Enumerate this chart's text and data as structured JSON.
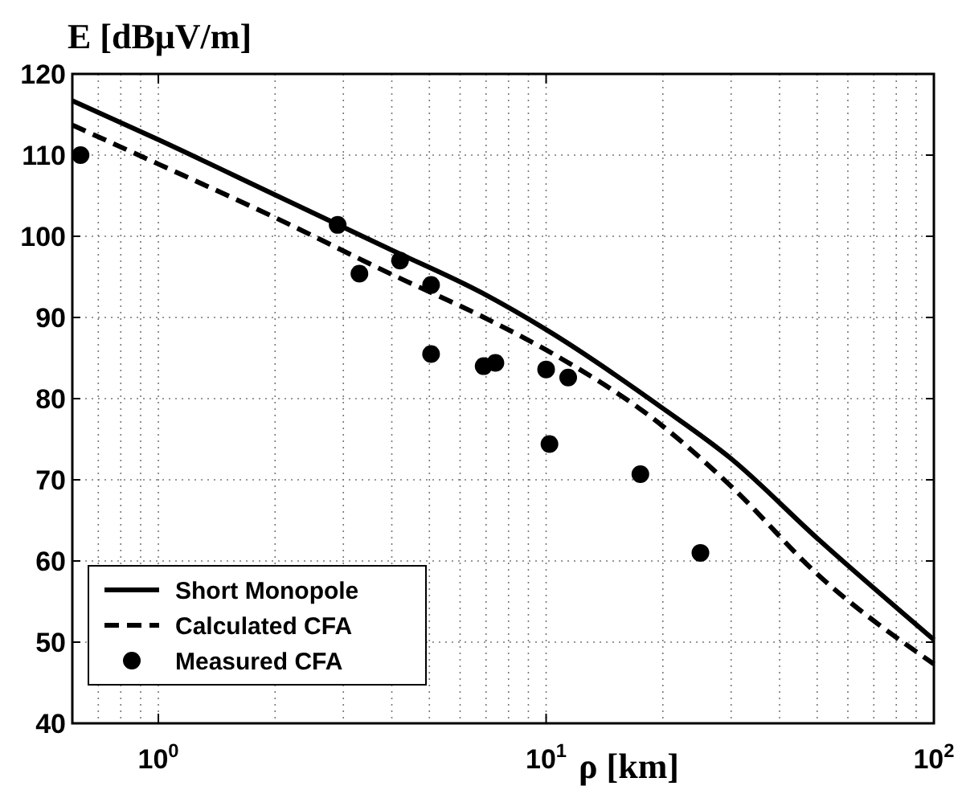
{
  "chart_data": {
    "type": "line",
    "xlabel": "ρ [km]",
    "ylabel": "E [dBμV/m]",
    "log": "x",
    "grid": true,
    "legend": "bottom left",
    "xlim": [
      0.6,
      100
    ],
    "xticks": [
      {
        "value": 1,
        "label": "10$^{0}$"
      },
      {
        "value": 10,
        "label": "10$^{1}$"
      },
      {
        "value": 100,
        "label": "10$^{2}$"
      }
    ],
    "ylim": [
      40,
      120
    ],
    "yticks": [
      40,
      50,
      60,
      70,
      80,
      90,
      100,
      110,
      120
    ],
    "series": [
      {
        "name": "Short Monopole",
        "color": "#000000",
        "line_style": "solid",
        "x": [
          0.6,
          1,
          2,
          4,
          6.85,
          10,
          20,
          30,
          50,
          100
        ],
        "values": [
          116.7,
          111.9,
          105.1,
          98.3,
          93,
          88.5,
          78.8,
          72.6,
          62.8,
          50.3
        ]
      },
      {
        "name": "Calculated CFA",
        "color": "#000000",
        "line_style": "dashed",
        "x": [
          0.6,
          1,
          2,
          4,
          6.85,
          10,
          20,
          30,
          50,
          100
        ],
        "values": [
          113.7,
          108.9,
          102.3,
          95.3,
          90.1,
          86,
          76.6,
          69.2,
          58.4,
          47.3
        ]
      },
      {
        "name": "Measured CFA",
        "type": "scatter",
        "color": "#000000",
        "marker": "circle",
        "x": [
          0.63,
          2.9,
          3.3,
          4.2,
          5.05,
          5.05,
          6.9,
          7.4,
          10,
          11.4,
          10.2,
          17.5,
          25
        ],
        "values": [
          110,
          101.4,
          95.4,
          97,
          94,
          85.5,
          84,
          84.4,
          83.6,
          82.6,
          74.4,
          70.7,
          61
        ]
      }
    ]
  }
}
